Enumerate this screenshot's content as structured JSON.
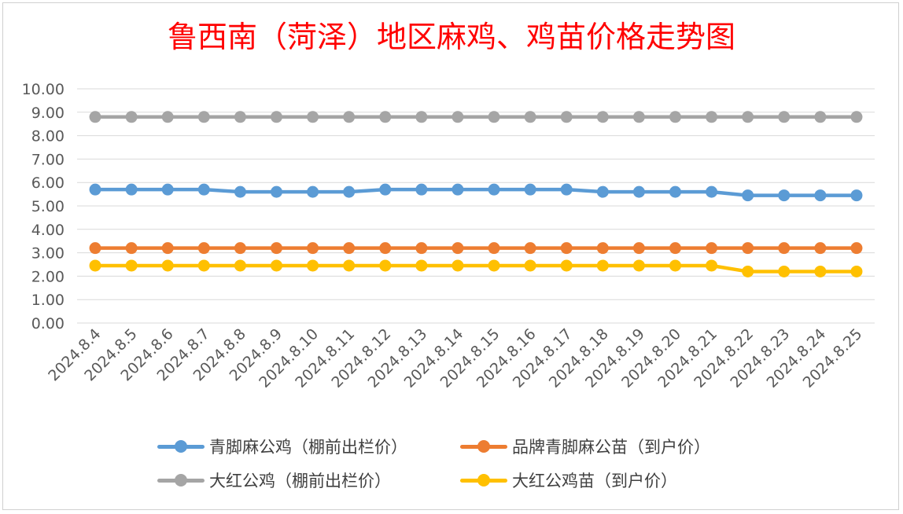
{
  "chart_data": {
    "type": "line",
    "title": "鲁西南（菏泽）地区麻鸡、鸡苗价格走势图",
    "categories": [
      "2024.8.4",
      "2024.8.5",
      "2024.8.6",
      "2024.8.7",
      "2024.8.8",
      "2024.8.9",
      "2024.8.10",
      "2024.8.11",
      "2024.8.12",
      "2024.8.13",
      "2024.8.14",
      "2024.8.15",
      "2024.8.16",
      "2024.8.17",
      "2024.8.18",
      "2024.8.19",
      "2024.8.20",
      "2024.8.21",
      "2024.8.22",
      "2024.8.23",
      "2024.8.24",
      "2024.8.25"
    ],
    "y_ticks": [
      "0.00",
      "1.00",
      "2.00",
      "3.00",
      "4.00",
      "5.00",
      "6.00",
      "7.00",
      "8.00",
      "9.00",
      "10.00"
    ],
    "ylim": [
      0,
      10
    ],
    "grid": true,
    "legend_position": "bottom",
    "series": [
      {
        "name": "青脚麻公鸡（棚前出栏价）",
        "color": "#5b9bd5",
        "values": [
          5.7,
          5.7,
          5.7,
          5.7,
          5.6,
          5.6,
          5.6,
          5.6,
          5.7,
          5.7,
          5.7,
          5.7,
          5.7,
          5.7,
          5.6,
          5.6,
          5.6,
          5.6,
          5.45,
          5.45,
          5.45,
          5.45
        ]
      },
      {
        "name": "品牌青脚麻公苗（到户价）",
        "color": "#ed7d31",
        "values": [
          3.2,
          3.2,
          3.2,
          3.2,
          3.2,
          3.2,
          3.2,
          3.2,
          3.2,
          3.2,
          3.2,
          3.2,
          3.2,
          3.2,
          3.2,
          3.2,
          3.2,
          3.2,
          3.2,
          3.2,
          3.2,
          3.2
        ]
      },
      {
        "name": "大红公鸡（棚前出栏价）",
        "color": "#a5a5a5",
        "values": [
          8.8,
          8.8,
          8.8,
          8.8,
          8.8,
          8.8,
          8.8,
          8.8,
          8.8,
          8.8,
          8.8,
          8.8,
          8.8,
          8.8,
          8.8,
          8.8,
          8.8,
          8.8,
          8.8,
          8.8,
          8.8,
          8.8
        ]
      },
      {
        "name": "大红公鸡苗（到户价）",
        "color": "#ffc000",
        "values": [
          2.45,
          2.45,
          2.45,
          2.45,
          2.45,
          2.45,
          2.45,
          2.45,
          2.45,
          2.45,
          2.45,
          2.45,
          2.45,
          2.45,
          2.45,
          2.45,
          2.45,
          2.45,
          2.2,
          2.2,
          2.2,
          2.2
        ]
      }
    ]
  }
}
